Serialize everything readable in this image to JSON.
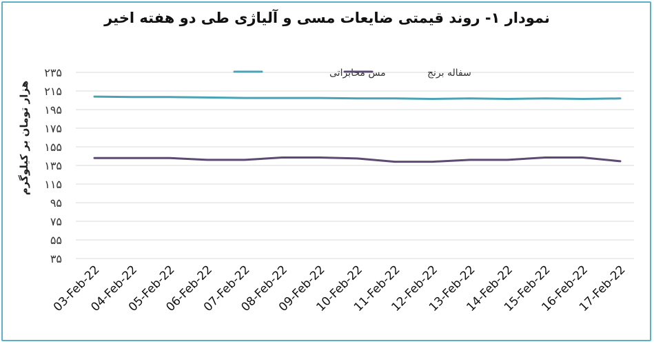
{
  "chart_data": {
    "type": "line",
    "title": "نمودار ۱- روند قیمتی ضایعات مسی و آلیاژی طی دو هفته اخیر",
    "ylabel": "هزار تومان بر کیلوگرم",
    "xlabel": "",
    "ylim": [
      35,
      235
    ],
    "yticks": [
      "۳۵",
      "۵۵",
      "۷۵",
      "۹۵",
      "۱۱۵",
      "۱۳۵",
      "۱۵۵",
      "۱۷۵",
      "۱۹۵",
      "۲۱۵",
      "۲۳۵"
    ],
    "ytick_values": [
      35,
      55,
      75,
      95,
      115,
      135,
      155,
      175,
      195,
      215,
      235
    ],
    "grid": true,
    "legend_position": "top",
    "categories": [
      "03-Feb-22",
      "04-Feb-22",
      "05-Feb-22",
      "06-Feb-22",
      "07-Feb-22",
      "08-Feb-22",
      "09-Feb-22",
      "10-Feb-22",
      "11-Feb-22",
      "12-Feb-22",
      "13-Feb-22",
      "14-Feb-22",
      "15-Feb-22",
      "16-Feb-22",
      "17-Feb-22"
    ],
    "series": [
      {
        "name": "مس مخابراتی",
        "color": "#4aa3b5",
        "values": [
          209,
          208.5,
          208.5,
          208,
          207.5,
          207.5,
          207.5,
          207,
          207,
          206.5,
          207,
          206.5,
          207,
          206.5,
          207
        ]
      },
      {
        "name": "سفاله برنج",
        "color": "#5d4a72",
        "values": [
          143,
          143,
          143,
          141,
          141,
          143.5,
          143.5,
          142.5,
          139,
          139,
          141,
          141,
          143.5,
          143.5,
          139.5
        ]
      }
    ]
  }
}
